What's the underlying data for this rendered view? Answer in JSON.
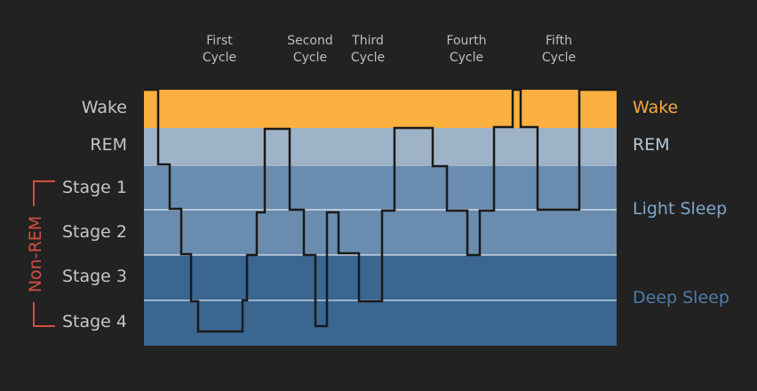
{
  "cycles": [
    {
      "line1": "First",
      "line2": "Cycle"
    },
    {
      "line1": "Second",
      "line2": "Cycle"
    },
    {
      "line1": "Third",
      "line2": "Cycle"
    },
    {
      "line1": "Fourth",
      "line2": "Cycle"
    },
    {
      "line1": "Fifth",
      "line2": "Cycle"
    }
  ],
  "stage_labels": {
    "wake": "Wake",
    "rem": "REM",
    "stage1": "Stage 1",
    "stage2": "Stage 2",
    "stage3": "Stage 3",
    "stage4": "Stage 4"
  },
  "non_rem_label": "Non-REM",
  "right_labels": {
    "wake": "Wake",
    "rem": "REM",
    "light": "Light Sleep",
    "deep": "Deep Sleep"
  },
  "colors": {
    "background": "#222222",
    "wake_band": "#fbb040",
    "rem_band": "#9fb3c8",
    "light_band": "#6a8caf",
    "deep_band": "#3a6690",
    "trace": "#1a1a1a",
    "non_rem_bracket": "#d24f42",
    "wake_text": "#f5a83b",
    "rem_text": "#b7c8d8",
    "light_text": "#7fa6cc",
    "deep_text": "#4d7ca8"
  }
}
